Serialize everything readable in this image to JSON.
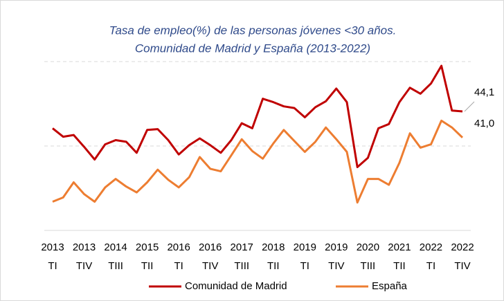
{
  "chart_data": {
    "type": "line",
    "title": "Tasa de empleo(%) de las personas jóvenes <30 años.",
    "subtitle": "Comunidad de Madrid y España (2013-2022)",
    "categories": [
      [
        "2013",
        "TI"
      ],
      null,
      null,
      [
        "2013",
        "TIV"
      ],
      null,
      null,
      [
        "2014",
        "TIII"
      ],
      null,
      null,
      [
        "2015",
        "TII"
      ],
      null,
      null,
      [
        "2016",
        "TI"
      ],
      null,
      null,
      [
        "2016",
        "TIV"
      ],
      null,
      null,
      [
        "2017",
        "TIII"
      ],
      null,
      null,
      [
        "2018",
        "TII"
      ],
      null,
      null,
      [
        "2019",
        "TI"
      ],
      null,
      null,
      [
        "2019",
        "TIV"
      ],
      null,
      null,
      [
        "2020",
        "TIII"
      ],
      null,
      null,
      [
        "2021",
        "TII"
      ],
      null,
      null,
      [
        "2022",
        "TI"
      ],
      null,
      null,
      [
        "2022",
        "TIV"
      ]
    ],
    "series": [
      {
        "name": "Comunidad de Madrid",
        "color": "#c00000",
        "values": [
          42.1,
          41.1,
          41.3,
          39.9,
          38.4,
          40.2,
          40.7,
          40.5,
          39.2,
          41.9,
          42.0,
          40.7,
          39.0,
          40.1,
          40.9,
          40.1,
          39.2,
          40.7,
          42.7,
          42.1,
          45.6,
          45.2,
          44.7,
          44.5,
          43.4,
          44.6,
          45.3,
          46.8,
          45.2,
          37.5,
          38.6,
          42.1,
          42.6,
          45.2,
          46.9,
          46.2,
          47.4,
          49.5,
          44.2,
          44.1
        ],
        "value_labels": [
          null,
          null,
          null,
          null,
          null,
          null,
          null,
          null,
          null,
          null,
          null,
          null,
          null,
          null,
          null,
          null,
          null,
          null,
          null,
          null,
          null,
          null,
          null,
          null,
          null,
          null,
          null,
          null,
          null,
          null,
          null,
          null,
          null,
          null,
          null,
          null,
          null,
          null,
          null,
          "44,1"
        ]
      },
      {
        "name": "España",
        "color": "#ed7d31",
        "values": [
          33.4,
          33.9,
          35.7,
          34.3,
          33.4,
          35.1,
          36.1,
          35.2,
          34.5,
          35.7,
          37.2,
          36.0,
          35.1,
          36.3,
          38.7,
          37.3,
          37.0,
          38.9,
          40.8,
          39.4,
          38.5,
          40.3,
          41.9,
          40.6,
          39.3,
          40.5,
          42.2,
          40.8,
          39.3,
          33.3,
          36.1,
          36.1,
          35.4,
          38.0,
          41.5,
          39.8,
          40.2,
          43.0,
          42.2,
          41.0
        ],
        "value_labels": [
          null,
          null,
          null,
          null,
          null,
          null,
          null,
          null,
          null,
          null,
          null,
          null,
          null,
          null,
          null,
          null,
          null,
          null,
          null,
          null,
          null,
          null,
          null,
          null,
          null,
          null,
          null,
          null,
          null,
          null,
          null,
          null,
          null,
          null,
          null,
          null,
          null,
          null,
          null,
          "41,0"
        ]
      }
    ],
    "ylim": [
      30,
      50
    ],
    "yticks": [
      30,
      40,
      50
    ],
    "grid": true
  }
}
